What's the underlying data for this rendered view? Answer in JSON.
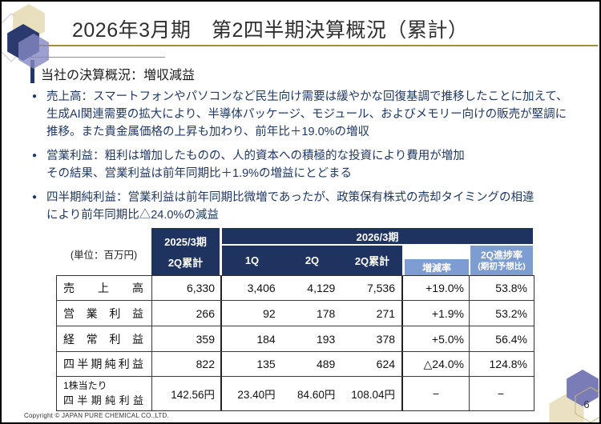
{
  "slide": {
    "title": "2026年3月期　第2四半期決算概況（累計）",
    "subtitle": "当社の決算概況：増収減益",
    "footer": "Copyright © JAPAN PURE CHEMICAL CO.,LTD.",
    "page_number": "6"
  },
  "bullets": {
    "marker": "●",
    "items": [
      {
        "text": "売上高：スマートフォンやパソコンなど民生向け需要は緩やかな回復基調で推移したことに加えて、\n生成AI関連需要の拡大により、半導体パッケージ、モジュール、およびメモリー向けの販売が堅調に\n推移。また貴金属価格の上昇も加わり、前年比＋19.0%の増収"
      },
      {
        "text": "営業利益：粗利は増加したものの、人的資本への積極的な投資により費用が増加\nその結果、営業利益は前年同期比＋1.9%の増益にとどまる"
      },
      {
        "text": "四半期純利益：営業利益は前年同期比微増であったが、政策保有株式の売却タイミングの相違\nにより前年同期比△24.0%の減益"
      }
    ]
  },
  "table": {
    "unit_label": "(単位：百万円)",
    "header": {
      "fy2025": "2025/3期",
      "fy2025_sub": "2Q累計",
      "fy2026": "2026/3期",
      "q1": "1Q",
      "q2": "2Q",
      "q2_cum": "2Q累計",
      "change_rate": "増減率",
      "progress_line1": "2Q進捗率",
      "progress_line2": "(期初予想比)"
    },
    "rows": [
      {
        "label": "売上高",
        "fy2025": "6,330",
        "q1": "3,406",
        "q2": "4,129",
        "q2_cum": "7,536",
        "change": "+19.0%",
        "progress": "53.8%"
      },
      {
        "label": "営業利益",
        "fy2025": "266",
        "q1": "92",
        "q2": "178",
        "q2_cum": "271",
        "change": "+1.9%",
        "progress": "53.2%"
      },
      {
        "label": "経常利益",
        "fy2025": "359",
        "q1": "184",
        "q2": "193",
        "q2_cum": "378",
        "change": "+5.0%",
        "progress": "56.4%"
      },
      {
        "label": "四半期純利益",
        "fy2025": "822",
        "q1": "135",
        "q2": "489",
        "q2_cum": "624",
        "change": "△24.0%",
        "progress": "124.8%"
      },
      {
        "label_top": "1株当たり",
        "label": "四半期純利益",
        "fy2025": "142.56円",
        "q1": "23.40円",
        "q2": "84.60円",
        "q2_cum": "108.04円",
        "change": "−",
        "progress": "−"
      }
    ]
  },
  "colors": {
    "header_navy": "#1f3360",
    "header_light_blue": "#7d9cd1",
    "bullet_text_navy": "#1f3864",
    "title_gold_line": "#a68d33",
    "deco_beige": "#e7dfbe",
    "deco_purple": "#7a7cb8"
  }
}
